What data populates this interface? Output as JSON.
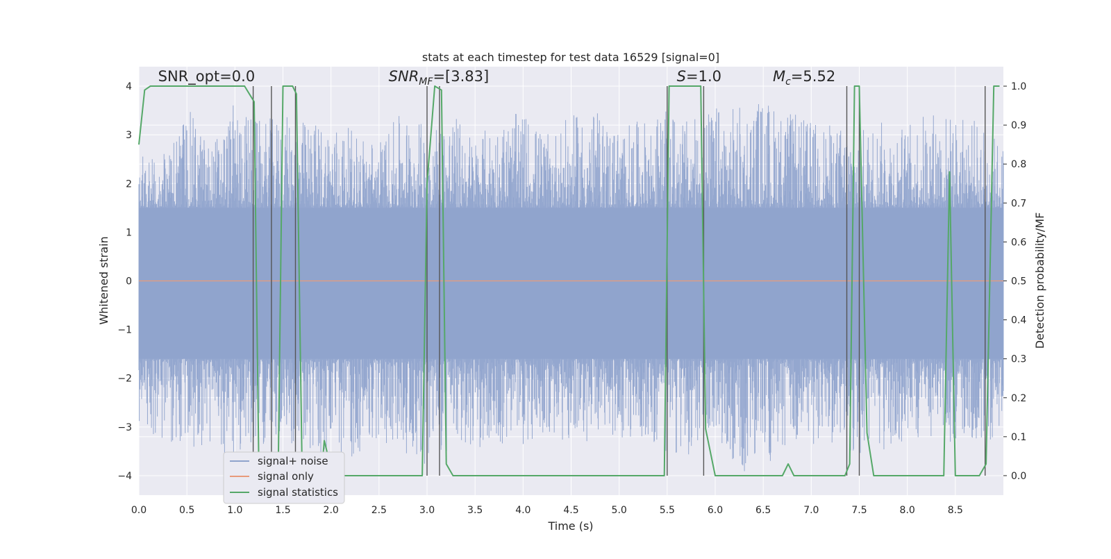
{
  "chart_data": {
    "type": "line",
    "title": "stats at each timestep for test data 16529 [signal=0]",
    "xlabel": "Time (s)",
    "ylabel_left": "Whitened strain",
    "ylabel_right": "Detection probability/MF",
    "xlim": [
      0.0,
      9.0
    ],
    "ylim_left": [
      -4.4,
      4.4
    ],
    "ylim_right": [
      -0.05,
      1.05
    ],
    "x_ticks": [
      0.0,
      0.5,
      1.0,
      1.5,
      2.0,
      2.5,
      3.0,
      3.5,
      4.0,
      4.5,
      5.0,
      5.5,
      6.0,
      6.5,
      7.0,
      7.5,
      8.0,
      8.5
    ],
    "x_tick_labels": [
      "0.0",
      "0.5",
      "1.0",
      "1.5",
      "2.0",
      "2.5",
      "3.0",
      "3.5",
      "4.0",
      "4.5",
      "5.0",
      "5.5",
      "6.0",
      "6.5",
      "7.0",
      "7.5",
      "8.0",
      "8.5"
    ],
    "y_left_ticks": [
      -4,
      -3,
      -2,
      -1,
      0,
      1,
      2,
      3,
      4
    ],
    "y_left_tick_labels": [
      "−4",
      "−3",
      "−2",
      "−1",
      "0",
      "1",
      "2",
      "3",
      "4"
    ],
    "y_right_ticks": [
      0.0,
      0.1,
      0.2,
      0.3,
      0.4,
      0.5,
      0.6,
      0.7,
      0.8,
      0.9,
      1.0
    ],
    "y_right_tick_labels": [
      "0.0",
      "0.1",
      "0.2",
      "0.3",
      "0.4",
      "0.5",
      "0.6",
      "0.7",
      "0.8",
      "0.9",
      "1.0"
    ],
    "grid": true,
    "annotations": [
      {
        "id": "snr-opt",
        "text": "SNR_opt=0.0",
        "x": 0.2,
        "y": 4.1
      },
      {
        "id": "snr-mf",
        "text": "SNR_MF=[3.83]",
        "x": 2.6,
        "y": 4.1
      },
      {
        "id": "stat",
        "text": "S=1.0",
        "x": 5.6,
        "y": 4.1
      },
      {
        "id": "chirp-mass",
        "text": "M_c=5.52",
        "x": 6.6,
        "y": 4.1
      }
    ],
    "legend": {
      "position": "lower-left",
      "entries": [
        {
          "label": "signal+ noise",
          "color": "#8fa3cc"
        },
        {
          "label": "signal only",
          "color": "#e89a7a"
        },
        {
          "label": "signal statistics",
          "color": "#55a868"
        }
      ]
    },
    "series": [
      {
        "name": "signal+ noise",
        "axis": "left",
        "style": "dense-oscillation",
        "color": "#8fa3cc",
        "envelope_x": [
          0.0,
          0.25,
          0.5,
          0.75,
          1.0,
          1.25,
          1.5,
          1.75,
          2.0,
          2.25,
          2.5,
          2.75,
          3.0,
          3.25,
          3.5,
          3.75,
          4.0,
          4.25,
          4.5,
          4.75,
          5.0,
          5.25,
          5.5,
          5.75,
          6.0,
          6.25,
          6.5,
          6.75,
          7.0,
          7.25,
          7.5,
          7.75,
          8.0,
          8.25,
          8.5,
          8.75,
          9.0
        ],
        "envelope_upper": [
          2.7,
          2.6,
          3.6,
          2.8,
          3.7,
          3.3,
          3.4,
          3.3,
          3.3,
          3.1,
          2.9,
          3.5,
          3.2,
          3.5,
          3.0,
          3.3,
          3.5,
          3.0,
          3.4,
          3.5,
          3.2,
          3.3,
          3.5,
          3.3,
          3.6,
          3.6,
          3.8,
          3.5,
          3.3,
          3.2,
          3.2,
          3.3,
          3.2,
          3.6,
          3.4,
          3.3,
          2.8
        ],
        "envelope_lower": [
          -3.0,
          -3.5,
          -3.5,
          -3.5,
          -3.7,
          -3.4,
          -3.2,
          -3.6,
          -3.9,
          -3.6,
          -3.3,
          -3.5,
          -3.8,
          -3.6,
          -3.4,
          -3.5,
          -3.4,
          -3.2,
          -3.4,
          -3.3,
          -3.3,
          -3.2,
          -3.6,
          -3.6,
          -3.2,
          -4.0,
          -3.8,
          -3.6,
          -3.4,
          -3.4,
          -3.6,
          -3.7,
          -3.4,
          -3.2,
          -3.4,
          -3.3,
          -3.3
        ],
        "core_band": [
          -1.6,
          1.5
        ]
      },
      {
        "name": "signal only",
        "axis": "left",
        "color": "#e89a7a",
        "x": [
          0.0,
          9.0
        ],
        "y": [
          0.0,
          0.0
        ]
      },
      {
        "name": "signal statistics",
        "axis": "right",
        "color": "#55a868",
        "x": [
          0.0,
          0.06,
          0.12,
          0.2,
          0.4,
          0.6,
          0.8,
          1.0,
          1.1,
          1.15,
          1.2,
          1.25,
          1.3,
          1.35,
          1.4,
          1.45,
          1.5,
          1.6,
          1.64,
          1.7,
          1.8,
          1.9,
          1.93,
          1.97,
          2.0,
          2.2,
          2.5,
          2.8,
          2.95,
          3.0,
          3.08,
          3.15,
          3.2,
          3.27,
          3.5,
          4.0,
          4.5,
          4.9,
          4.95,
          5.0,
          5.2,
          5.47,
          5.52,
          5.56,
          5.7,
          5.85,
          5.9,
          6.0,
          6.5,
          6.7,
          6.76,
          6.82,
          7.0,
          7.35,
          7.4,
          7.45,
          7.5,
          7.58,
          7.65,
          8.0,
          8.38,
          8.44,
          8.5,
          8.6,
          8.75,
          8.82,
          8.9,
          8.96
        ],
        "y": [
          0.85,
          0.99,
          1.0,
          1.0,
          1.0,
          1.0,
          1.0,
          1.0,
          1.0,
          0.98,
          0.96,
          0.0,
          0.0,
          0.0,
          0.0,
          0.0,
          1.0,
          1.0,
          0.98,
          0.0,
          0.0,
          0.0,
          0.09,
          0.05,
          0.0,
          0.0,
          0.0,
          0.0,
          0.0,
          0.75,
          1.0,
          0.99,
          0.03,
          0.0,
          0.0,
          0.0,
          0.0,
          0.0,
          0.0,
          0.0,
          0.0,
          0.0,
          1.0,
          1.0,
          1.0,
          1.0,
          0.12,
          0.0,
          0.0,
          0.0,
          0.03,
          0.0,
          0.0,
          0.0,
          0.03,
          1.0,
          1.0,
          0.11,
          0.0,
          0.0,
          0.0,
          0.78,
          0.0,
          0.0,
          0.0,
          0.03,
          1.0,
          1.0
        ]
      }
    ],
    "vertical_lines": [
      1.19,
      1.38,
      1.63,
      3.0,
      3.13,
      5.5,
      5.88,
      7.37,
      7.5,
      8.81
    ],
    "vertical_lines_color": "#555555"
  }
}
